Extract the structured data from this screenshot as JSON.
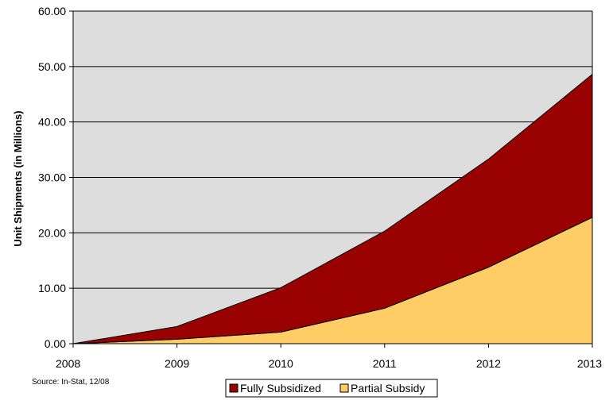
{
  "chart_data": {
    "type": "area",
    "stacked": true,
    "x": [
      "2008",
      "2009",
      "2010",
      "2011",
      "2012",
      "2013"
    ],
    "series": [
      {
        "name": "Partial Subsidy",
        "color": "#ffcc66",
        "values": [
          0.0,
          0.8,
          2.1,
          6.4,
          13.8,
          22.8
        ]
      },
      {
        "name": "Fully Subsidized",
        "color": "#990000",
        "values": [
          0.0,
          2.3,
          8.0,
          13.9,
          19.5,
          25.8
        ]
      }
    ],
    "ylabel": "Unit Shipments (in Millions)",
    "ylim": [
      0,
      60
    ],
    "yticks": [
      "0.00",
      "10.00",
      "20.00",
      "30.00",
      "40.00",
      "50.00",
      "60.00"
    ],
    "grid": true,
    "plot_background": "#dddddd",
    "legend_position": "bottom-center",
    "legend_order": [
      "Fully Subsidized",
      "Partial Subsidy"
    ],
    "source": "Source: In-Stat, 12/08"
  }
}
